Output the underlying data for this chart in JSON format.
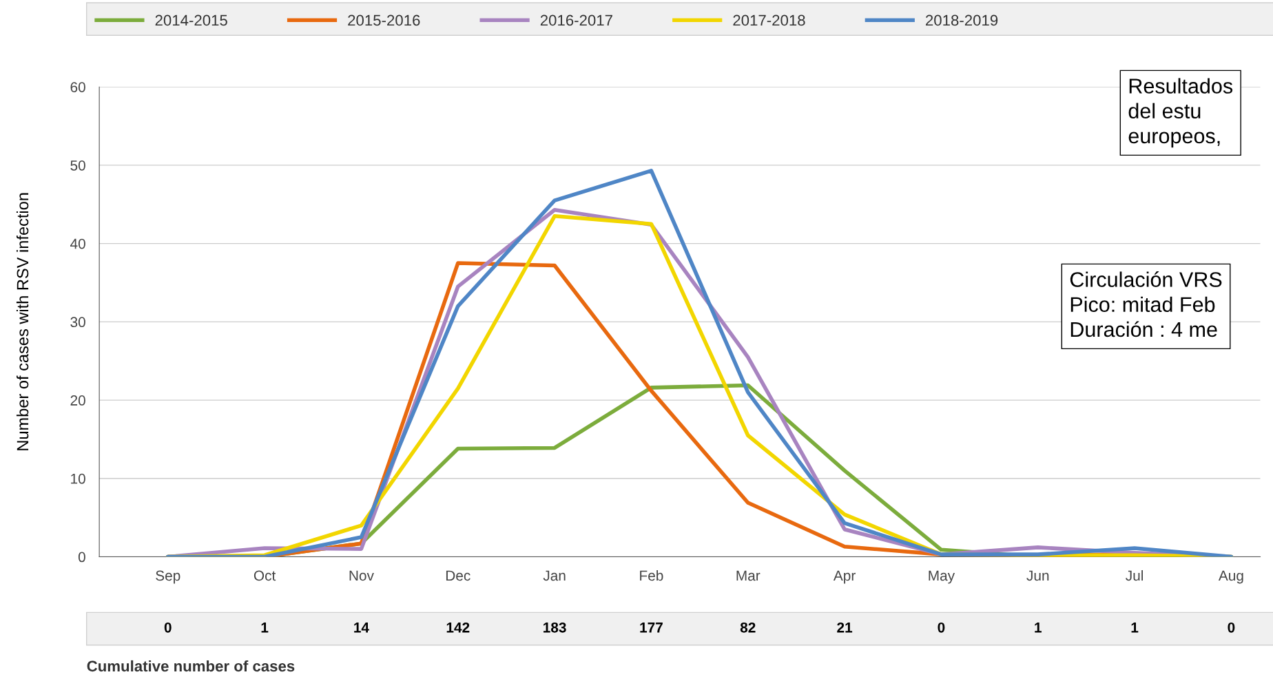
{
  "chart_data": {
    "type": "line",
    "ylabel": "Number of cases with RSV infection",
    "categories": [
      "Sep",
      "Oct",
      "Nov",
      "Dec",
      "Jan",
      "Feb",
      "Mar",
      "Apr",
      "May",
      "Jun",
      "Jul",
      "Aug"
    ],
    "ylim": [
      0,
      60
    ],
    "yticks": [
      0,
      10,
      20,
      30,
      40,
      50,
      60
    ],
    "grid": "y",
    "legend": "top",
    "line_style": "solid",
    "series": [
      {
        "name": "2014-2015",
        "color": "#7cac3c",
        "values": [
          0,
          0,
          1.7,
          13.8,
          13.9,
          21.6,
          21.9,
          11,
          0.9,
          0,
          0,
          0
        ]
      },
      {
        "name": "2015-2016",
        "color": "#e8690f",
        "values": [
          0,
          0,
          1.7,
          37.5,
          37.2,
          21.2,
          6.9,
          1.3,
          0.3,
          0.2,
          0.3,
          null
        ]
      },
      {
        "name": "2016-2017",
        "color": "#a884c0",
        "values": [
          0,
          1.1,
          1,
          34.5,
          44.3,
          42.4,
          25.5,
          3.5,
          0.3,
          1.2,
          0.5,
          0
        ]
      },
      {
        "name": "2017-2018",
        "color": "#f2d600",
        "values": [
          0,
          0.2,
          4,
          21.5,
          43.5,
          42.5,
          15.5,
          5.4,
          0.3,
          0.2,
          0.2,
          0
        ]
      },
      {
        "name": "2018-2019",
        "color": "#4f86c6",
        "values": [
          0,
          0,
          2.5,
          32,
          45.5,
          49.3,
          21,
          4.3,
          0.3,
          0.3,
          1.1,
          0
        ]
      }
    ],
    "annotations": [
      "Cumulative number of cases",
      "Resultados\ndel estu\neuropeos,",
      "Circulación VRS\nPico: mitad Feb\nDuración : 4 me",
      "0",
      "1",
      "14",
      "142",
      "183",
      "177",
      "82",
      "21",
      "0",
      "1",
      "1",
      "0"
    ]
  }
}
